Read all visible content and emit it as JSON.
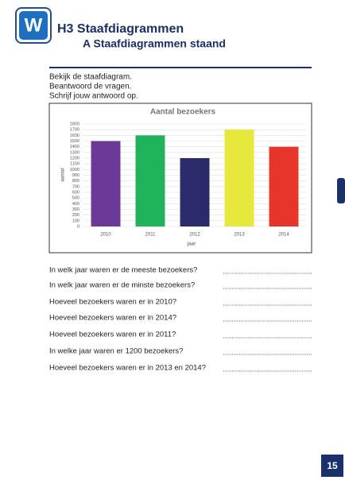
{
  "header": {
    "logo": "W",
    "title": "H3 Staafdiagrammen",
    "subtitle": "A Staafdiagrammen staand"
  },
  "instructions": [
    "Bekijk de staafdiagram.",
    "Beantwoord de vragen.",
    "Schrijf jouw antwoord op."
  ],
  "chart_data": {
    "type": "bar",
    "title": "Aantal bezoekers",
    "x_label": "jaar",
    "y_label": "aantal",
    "categories": [
      "2010",
      "2011",
      "2012",
      "2013",
      "2014"
    ],
    "values": [
      1500,
      1600,
      1200,
      1700,
      1400
    ],
    "colors": [
      "#6b3a98",
      "#1fb35b",
      "#2b2a6a",
      "#e6e83c",
      "#e8352b"
    ],
    "ylim": [
      0,
      1800
    ],
    "yticks": [
      0,
      100,
      200,
      300,
      400,
      500,
      600,
      700,
      800,
      900,
      1000,
      1100,
      1200,
      1300,
      1400,
      1500,
      1600,
      1700,
      1800
    ],
    "grid": true
  },
  "questions": [
    "In welk jaar waren er de meeste bezoekers?",
    "In welk jaar waren er de minste bezoekers?",
    "Hoeveel bezoekers waren er in 2010?",
    "Hoeveel bezoekers waren er in 2014?",
    "Hoeveel bezoekers waren er in 2011?",
    "In welke jaar waren er 1200 bezoekers?",
    "Hoeveel bezoekers waren er in 2013 en 2014?"
  ],
  "page_number": "15"
}
